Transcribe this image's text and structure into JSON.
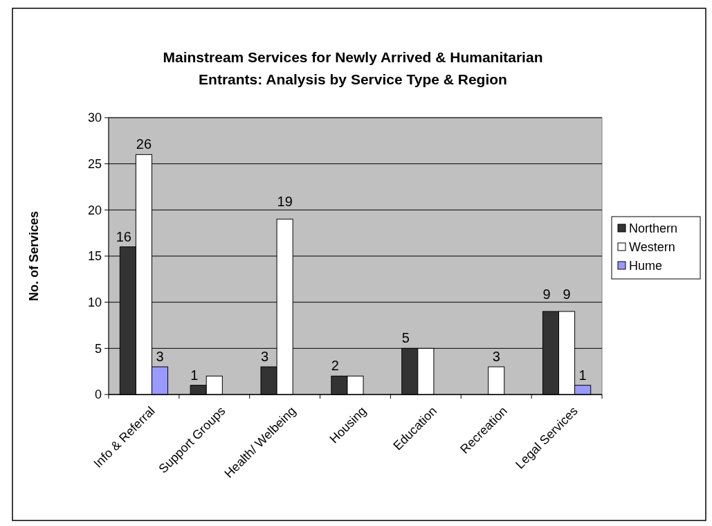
{
  "chart_data": {
    "type": "bar",
    "title": "Mainstream Services for Newly Arrived & Humanitarian Entrants: Analysis by Service Type & Region",
    "ylabel": "No. of Services",
    "categories": [
      "Info & Referral",
      "Support Groups",
      "Health/ Welbeing",
      "Housing",
      "Education",
      "Recreation",
      "Legal Services"
    ],
    "series": [
      {
        "name": "Northern",
        "color": "#333333",
        "values": [
          16,
          1,
          3,
          2,
          5,
          null,
          9
        ],
        "value_labels": [
          "16",
          "1",
          "3",
          "2",
          "5",
          null,
          "9"
        ]
      },
      {
        "name": "Western",
        "color": "#ffffff",
        "values": [
          26,
          2,
          19,
          2,
          5,
          3,
          9
        ],
        "value_labels": [
          "26",
          null,
          "19",
          null,
          null,
          "3",
          "9"
        ]
      },
      {
        "name": "Hume",
        "color": "#9999ff",
        "values": [
          3,
          null,
          null,
          null,
          null,
          null,
          1
        ],
        "value_labels": [
          "3",
          null,
          null,
          null,
          null,
          null,
          "1"
        ]
      }
    ],
    "ylim": [
      0,
      30
    ],
    "yticks": [
      0,
      5,
      10,
      15,
      20,
      25,
      30
    ],
    "grid": "y",
    "legend": "right"
  }
}
